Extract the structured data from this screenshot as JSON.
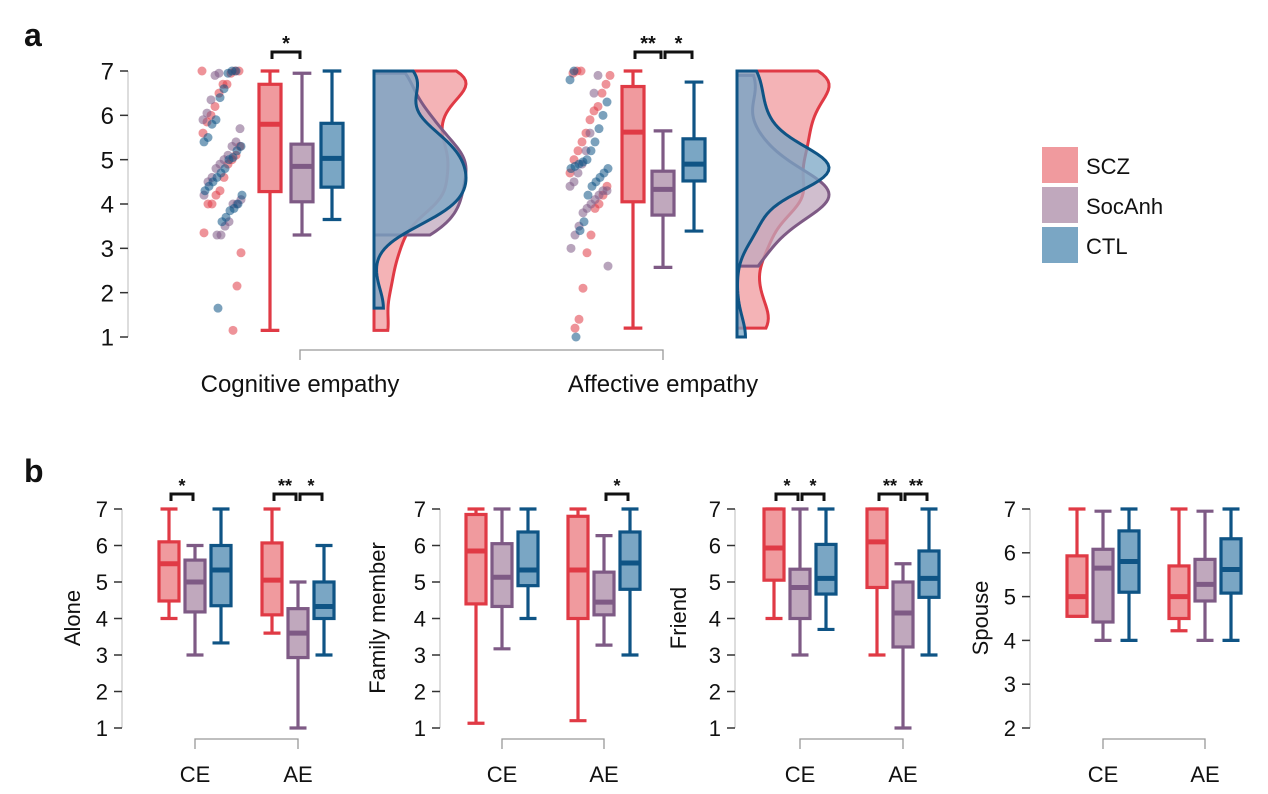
{
  "panel_labels": [
    "a",
    "b"
  ],
  "legend": [
    {
      "label": "SCZ",
      "fill": "#f09a9e",
      "stroke": "#e03a45"
    },
    {
      "label": "SocAnh",
      "fill": "#c0a8bd",
      "stroke": "#7e5a85"
    },
    {
      "label": "CTL",
      "fill": "#7aa6c4",
      "stroke": "#0f5485"
    }
  ],
  "chart_data": [
    {
      "type": "box+jitter+density",
      "groups": [
        "SCZ",
        "SocAnh",
        "CTL"
      ],
      "categories": [
        "Cognitive empathy",
        "Affective empathy"
      ],
      "ylim": [
        1,
        7
      ],
      "yticks": [
        "1",
        "2",
        "3",
        "4",
        "5",
        "6",
        "7"
      ],
      "box_format": [
        "min",
        "q1",
        "median",
        "q3",
        "max"
      ],
      "boxes": [
        [
          [
            1.15,
            4.28,
            5.8,
            6.7,
            7
          ],
          [
            3.3,
            4.05,
            4.85,
            5.35,
            6.95
          ],
          [
            3.65,
            4.38,
            5.03,
            5.82,
            7
          ]
        ],
        [
          [
            1.2,
            4.05,
            5.62,
            6.65,
            7
          ],
          [
            2.57,
            3.75,
            4.33,
            4.74,
            5.65
          ],
          [
            3.39,
            4.52,
            4.9,
            5.47,
            6.75
          ]
        ]
      ],
      "points": [
        [
          [
            7,
            7,
            7,
            6.95,
            6.7,
            6.7,
            6.5,
            6.2,
            6,
            5.85,
            5.6,
            5.3,
            5.1,
            5.0,
            4.9,
            4.6,
            4.3,
            4.2,
            4.0,
            4.0,
            3.35,
            2.9,
            2.15,
            1.15
          ],
          [
            6.95,
            6.9,
            6.35,
            6.05,
            5.9,
            5.7,
            5.4,
            5.3,
            5.1,
            5.0,
            4.9,
            4.8,
            4.6,
            4.5,
            4.2,
            4.1,
            4.0,
            4.0,
            3.6,
            3.5,
            3.3,
            3.3
          ],
          [
            7,
            7,
            6.95,
            6.6,
            6.4,
            5.9,
            5.8,
            5.5,
            5.4,
            5.3,
            5.2,
            5.05,
            5.0,
            4.8,
            4.7,
            4.6,
            4.5,
            4.4,
            4.3,
            4.2,
            4.0,
            3.9,
            3.85,
            3.7,
            3.6,
            1.65
          ]
        ],
        [
          [
            7,
            7,
            6.95,
            6.9,
            6.7,
            6.5,
            6.2,
            6.1,
            5.9,
            5.6,
            5.4,
            5.2,
            5.0,
            4.7,
            4.4,
            4.2,
            4.0,
            3.9,
            3.3,
            2.9,
            2.1,
            1.4,
            1.2
          ],
          [
            6.9,
            6.5,
            5.6,
            5.2,
            4.9,
            4.7,
            4.5,
            4.4,
            4.3,
            4.3,
            4.2,
            4.1,
            4.0,
            3.9,
            3.8,
            3.5,
            3.3,
            3.0,
            2.6
          ],
          [
            7,
            6.8,
            6.3,
            6.0,
            5.7,
            5.4,
            5.2,
            5.0,
            4.95,
            4.9,
            4.85,
            4.8,
            4.8,
            4.7,
            4.6,
            4.5,
            4.4,
            4.2,
            3.6,
            3.4,
            1.0
          ]
        ]
      ],
      "significance": [
        {
          "category": 0,
          "pair": [
            0,
            1
          ],
          "label": "*"
        },
        {
          "category": 1,
          "pair": [
            0,
            1
          ],
          "label": "**"
        },
        {
          "category": 1,
          "pair": [
            1,
            2
          ],
          "label": "*"
        }
      ]
    },
    {
      "type": "box",
      "groups": [
        "SCZ",
        "SocAnh",
        "CTL"
      ],
      "subplots": [
        {
          "ylabel": "Alone",
          "categories": [
            "CE",
            "AE"
          ],
          "ylim": [
            1,
            7
          ],
          "yticks": [
            "1",
            "2",
            "3",
            "4",
            "5",
            "6",
            "7"
          ],
          "boxes": [
            [
              [
                4,
                4.48,
                5.5,
                6.1,
                7
              ],
              [
                3,
                4.18,
                5.0,
                5.6,
                6
              ],
              [
                3.33,
                4.35,
                5.33,
                6.0,
                7
              ]
            ],
            [
              [
                3.6,
                4.1,
                5.05,
                6.07,
                7
              ],
              [
                1,
                2.93,
                3.6,
                4.27,
                5
              ],
              [
                3,
                4,
                4.33,
                5,
                6
              ]
            ]
          ],
          "significance": [
            {
              "category": 0,
              "pair": [
                0,
                1
              ],
              "label": "*"
            },
            {
              "category": 1,
              "pair": [
                0,
                1
              ],
              "label": "**"
            },
            {
              "category": 1,
              "pair": [
                1,
                2
              ],
              "label": "*"
            }
          ]
        },
        {
          "ylabel": "Family member",
          "categories": [
            "CE",
            "AE"
          ],
          "ylim": [
            1,
            7
          ],
          "yticks": [
            "1",
            "2",
            "3",
            "4",
            "5",
            "6",
            "7"
          ],
          "boxes": [
            [
              [
                1.13,
                4.4,
                5.85,
                6.85,
                7
              ],
              [
                3.17,
                4.33,
                5.13,
                6.05,
                7
              ],
              [
                4,
                4.9,
                5.33,
                6.37,
                7
              ]
            ],
            [
              [
                1.2,
                4,
                5.33,
                6.8,
                7
              ],
              [
                3.27,
                4.1,
                4.45,
                5.27,
                6.27
              ],
              [
                3,
                4.8,
                5.52,
                6.37,
                7
              ]
            ]
          ],
          "significance": [
            {
              "category": 1,
              "pair": [
                1,
                2
              ],
              "label": "*"
            }
          ]
        },
        {
          "ylabel": "Friend",
          "categories": [
            "CE",
            "AE"
          ],
          "ylim": [
            1,
            7
          ],
          "yticks": [
            "1",
            "2",
            "3",
            "4",
            "5",
            "6",
            "7"
          ],
          "boxes": [
            [
              [
                4,
                5.05,
                5.93,
                7,
                7
              ],
              [
                3,
                4.0,
                4.85,
                5.35,
                7
              ],
              [
                3.7,
                4.67,
                5.1,
                6.03,
                7
              ]
            ],
            [
              [
                3,
                4.85,
                6.1,
                7,
                7
              ],
              [
                1,
                3.22,
                4.15,
                5.0,
                5.5
              ],
              [
                3,
                4.58,
                5.1,
                5.85,
                7
              ]
            ]
          ],
          "significance": [
            {
              "category": 0,
              "pair": [
                0,
                1
              ],
              "label": "*"
            },
            {
              "category": 0,
              "pair": [
                1,
                2
              ],
              "label": "*"
            },
            {
              "category": 1,
              "pair": [
                0,
                1
              ],
              "label": "**"
            },
            {
              "category": 1,
              "pair": [
                1,
                2
              ],
              "label": "**"
            }
          ]
        },
        {
          "ylabel": "Spouse",
          "categories": [
            "CE",
            "AE"
          ],
          "ylim": [
            2,
            7
          ],
          "yticks": [
            "2",
            "3",
            "4",
            "5",
            "6",
            "7"
          ],
          "boxes": [
            [
              [
                4.55,
                4.55,
                5.0,
                5.93,
                7
              ],
              [
                4,
                4.42,
                5.65,
                6.08,
                6.95
              ],
              [
                4,
                5.1,
                5.8,
                6.5,
                7
              ]
            ],
            [
              [
                4.22,
                4.5,
                5.0,
                5.7,
                7
              ],
              [
                4,
                4.9,
                5.28,
                5.85,
                6.95
              ],
              [
                4,
                5.08,
                5.62,
                6.32,
                7
              ]
            ]
          ],
          "significance": []
        }
      ]
    }
  ]
}
